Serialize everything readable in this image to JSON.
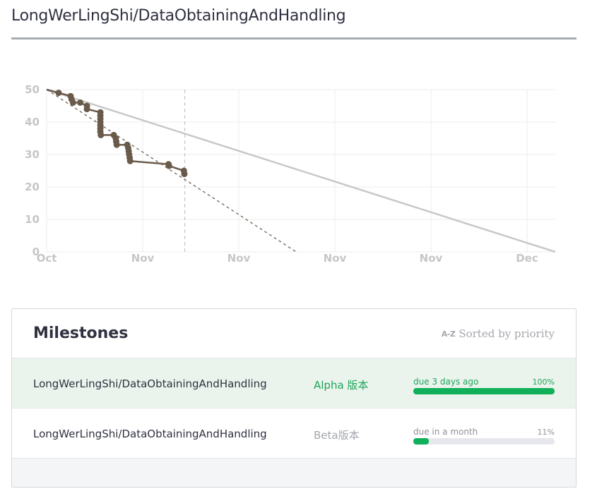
{
  "colors": {
    "accent_green": "#10b05a",
    "green_text": "#1ea45a",
    "muted_text": "#8e9198",
    "chart_line": "#6a5a4a",
    "ideal_line": "#c8c8c8",
    "grid": "#ececec"
  },
  "header": {
    "repo_title": "LongWerLingShi/DataObtainingAndHandling"
  },
  "chart_data": {
    "type": "line",
    "ylim": [
      0,
      50
    ],
    "yticks": [
      "0",
      "10",
      "20",
      "30",
      "40",
      "50"
    ],
    "xticks": [
      "Oct",
      "Nov",
      "Nov",
      "Nov",
      "Nov",
      "Dec"
    ],
    "grid": true,
    "series": [
      {
        "points": [
          [
            0,
            50
          ],
          [
            1.25,
            49
          ],
          [
            2.5,
            48
          ],
          [
            2.6,
            47
          ],
          [
            2.75,
            46
          ],
          [
            3.5,
            46
          ],
          [
            4.2,
            45
          ],
          [
            4.2,
            44
          ],
          [
            5.6,
            43
          ],
          [
            5.6,
            42
          ],
          [
            5.6,
            41
          ],
          [
            5.6,
            40
          ],
          [
            5.6,
            39
          ],
          [
            5.6,
            38
          ],
          [
            5.6,
            37
          ],
          [
            5.65,
            36
          ],
          [
            7,
            36
          ],
          [
            7.2,
            35
          ],
          [
            7.25,
            34
          ],
          [
            7.3,
            33
          ],
          [
            8.4,
            33
          ],
          [
            8.5,
            32
          ],
          [
            8.55,
            31
          ],
          [
            8.6,
            30
          ],
          [
            8.65,
            29
          ],
          [
            8.7,
            28
          ],
          [
            12.7,
            27
          ],
          [
            12.75,
            26.5
          ],
          [
            14.3,
            25
          ],
          [
            14.35,
            24
          ]
        ]
      },
      {
        "points": [
          [
            0,
            50
          ],
          [
            53,
            0
          ]
        ]
      },
      {
        "points": [
          [
            0,
            50
          ],
          [
            26,
            0
          ]
        ]
      }
    ],
    "today_x": 14.4,
    "x_max": 53
  },
  "milestones": {
    "title": "Milestones",
    "sort_icon": "A-Z",
    "sort_label": "Sorted by priority",
    "items": [
      {
        "repo": "LongWerLingShi/DataObtainingAndHandling",
        "milestone": "Alpha 版本",
        "due": "due 3 days ago",
        "percent_label": "100%",
        "percent": 100,
        "status": "complete"
      },
      {
        "repo": "LongWerLingShi/DataObtainingAndHandling",
        "milestone": "Beta版本",
        "due": "due in a month",
        "percent_label": "11%",
        "percent": 11,
        "status": "open"
      }
    ]
  }
}
